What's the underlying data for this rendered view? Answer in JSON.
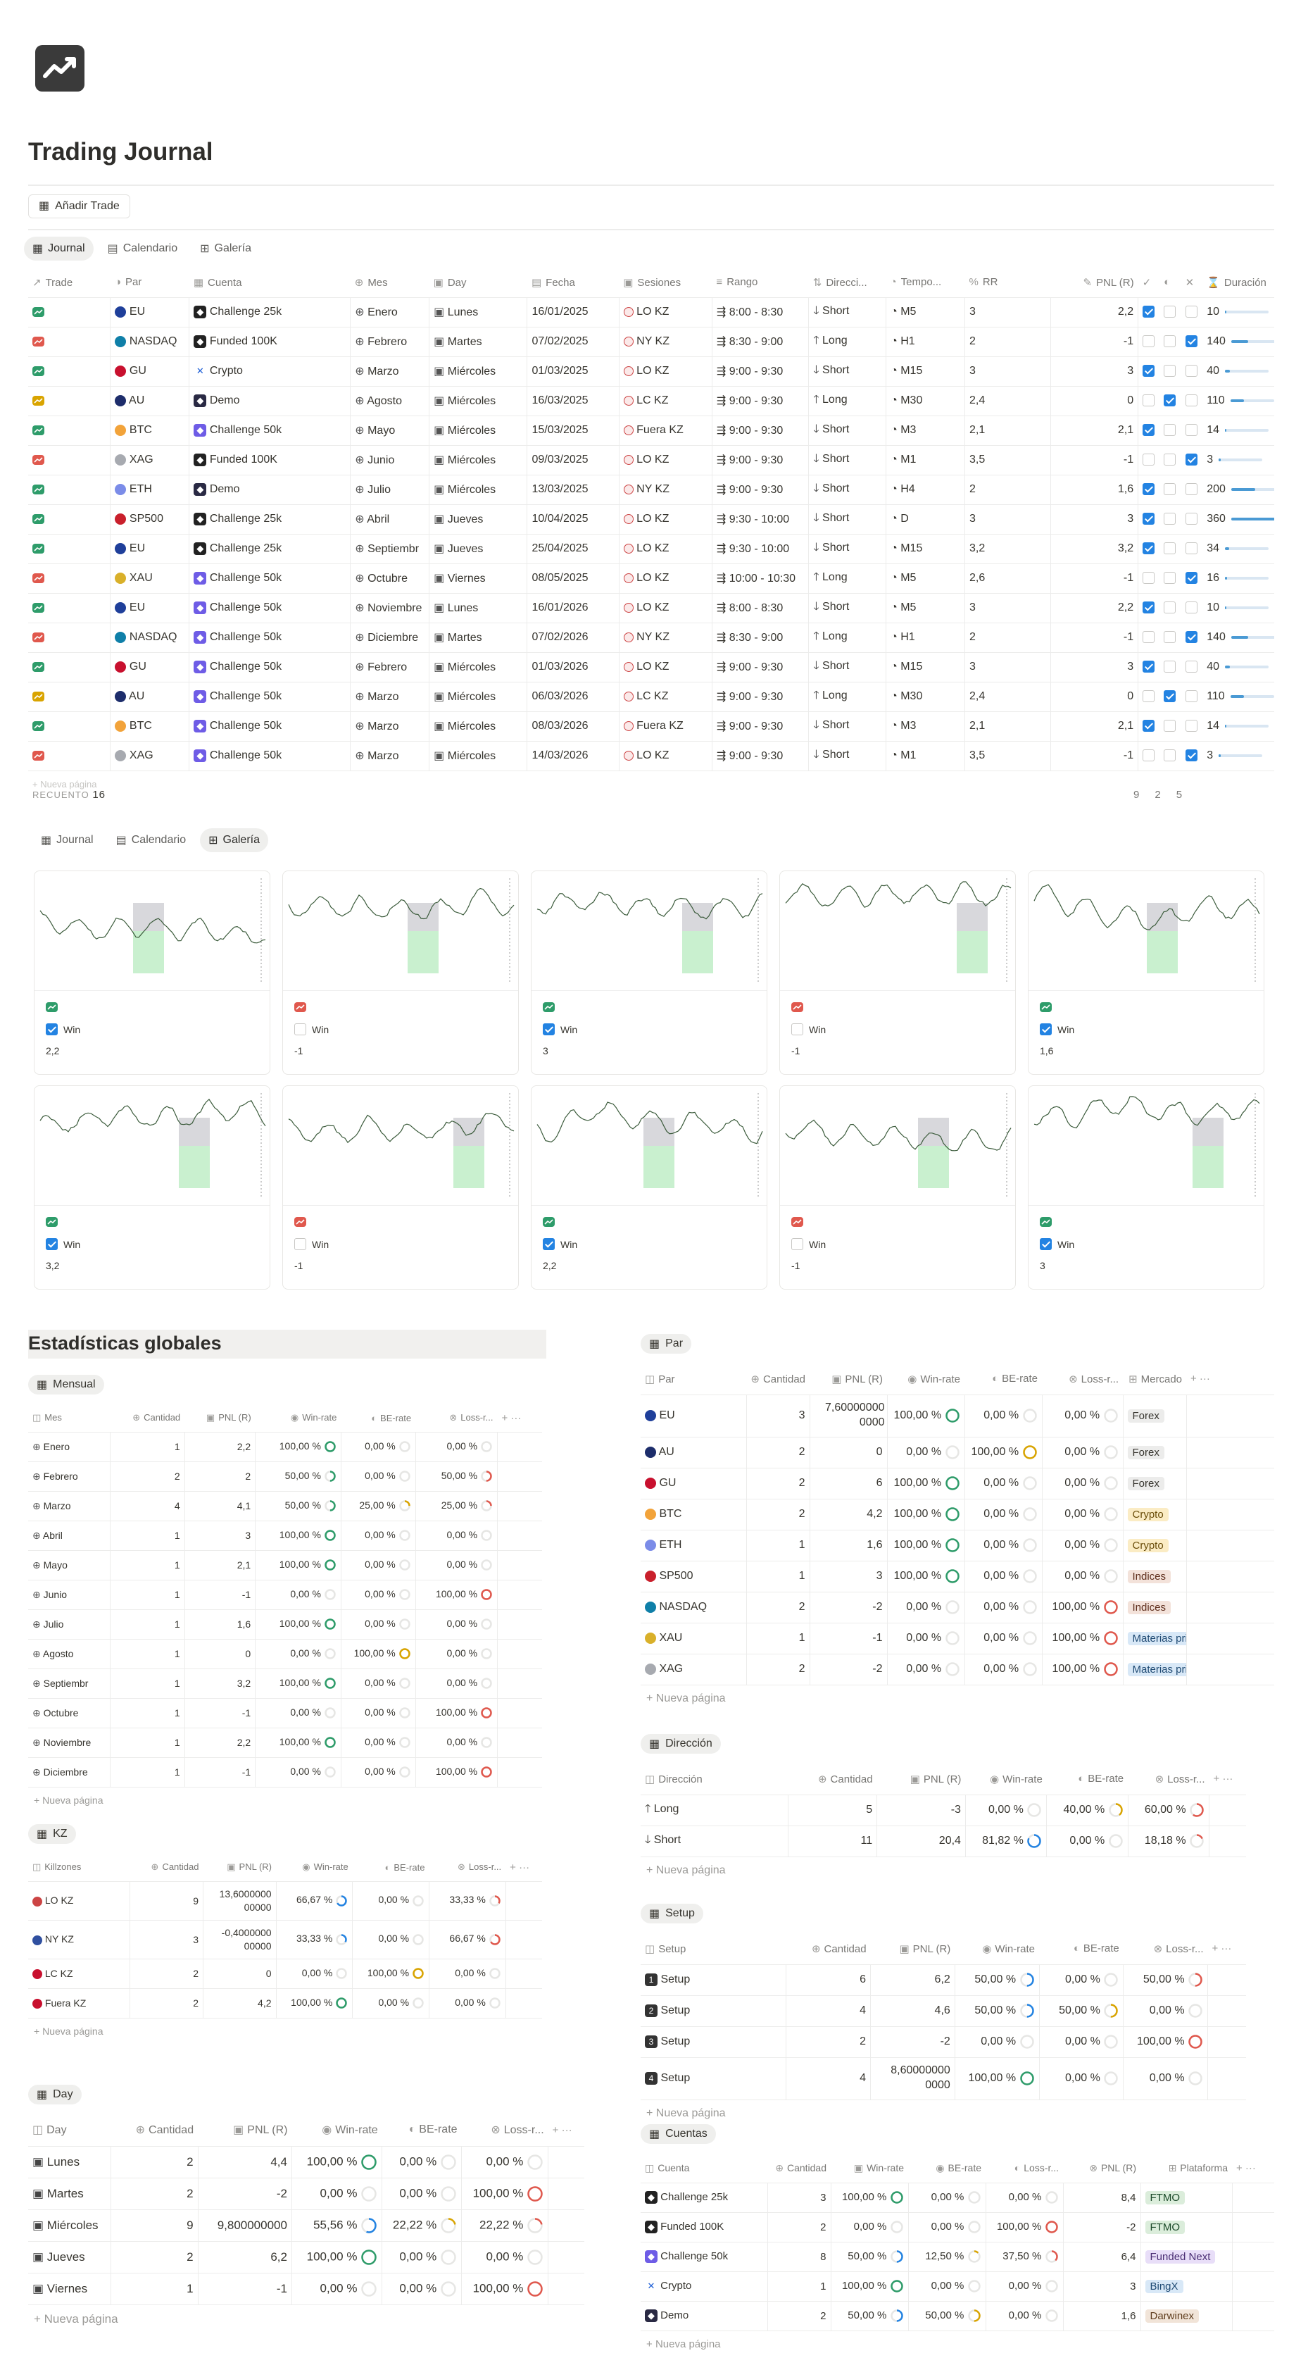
{
  "app": {
    "title": "Trading Journal",
    "add_trade": "Añadir Trade"
  },
  "views": [
    "Journal",
    "Calendario",
    "Galería"
  ],
  "journal": {
    "columns": [
      "Trade",
      "Par",
      "Cuenta",
      "Mes",
      "Day",
      "Fecha",
      "Sesiones",
      "Rango",
      "Direcci...",
      "Tempo...",
      "RR",
      "PNL (R)",
      "Duración"
    ],
    "rows": [
      {
        "pair": "EU",
        "acc": "Challenge 25k",
        "mes": "Enero",
        "day": "Lunes",
        "fecha": "16/01/2025",
        "ses": "LO KZ",
        "rango": "8:00 - 8:30",
        "dir": "Short",
        "tf": "M5",
        "rr": "3",
        "pnl": "2,2",
        "w": true,
        "b": false,
        "l": false,
        "dur": "10",
        "win": true
      },
      {
        "pair": "NASDAQ",
        "acc": "Funded 100K",
        "mes": "Febrero",
        "day": "Martes",
        "fecha": "07/02/2025",
        "ses": "NY KZ",
        "rango": "8:30 - 9:00",
        "dir": "Long",
        "tf": "H1",
        "rr": "2",
        "pnl": "-1",
        "w": false,
        "b": false,
        "l": true,
        "dur": "140",
        "win": false
      },
      {
        "pair": "GU",
        "acc": "Crypto",
        "mes": "Marzo",
        "day": "Miércoles",
        "fecha": "01/03/2025",
        "ses": "LO KZ",
        "rango": "9:00 - 9:30",
        "dir": "Short",
        "tf": "M15",
        "rr": "3",
        "pnl": "3",
        "w": true,
        "b": false,
        "l": false,
        "dur": "40",
        "win": true
      },
      {
        "pair": "AU",
        "acc": "Demo",
        "mes": "Agosto",
        "day": "Miércoles",
        "fecha": "16/03/2025",
        "ses": "LC KZ",
        "rango": "9:00 - 9:30",
        "dir": "Long",
        "tf": "M30",
        "rr": "2,4",
        "pnl": "0",
        "w": false,
        "b": true,
        "l": false,
        "dur": "110",
        "win": null
      },
      {
        "pair": "BTC",
        "acc": "Challenge 50k",
        "mes": "Mayo",
        "day": "Miércoles",
        "fecha": "15/03/2025",
        "ses": "Fuera KZ",
        "rango": "9:00 - 9:30",
        "dir": "Short",
        "tf": "M3",
        "rr": "2,1",
        "pnl": "2,1",
        "w": true,
        "b": false,
        "l": false,
        "dur": "14",
        "win": true
      },
      {
        "pair": "XAG",
        "acc": "Funded 100K",
        "mes": "Junio",
        "day": "Miércoles",
        "fecha": "09/03/2025",
        "ses": "LO KZ",
        "rango": "9:00 - 9:30",
        "dir": "Short",
        "tf": "M1",
        "rr": "3,5",
        "pnl": "-1",
        "w": false,
        "b": false,
        "l": true,
        "dur": "3",
        "win": false
      },
      {
        "pair": "ETH",
        "acc": "Demo",
        "mes": "Julio",
        "day": "Miércoles",
        "fecha": "13/03/2025",
        "ses": "NY KZ",
        "rango": "9:00 - 9:30",
        "dir": "Short",
        "tf": "H4",
        "rr": "2",
        "pnl": "1,6",
        "w": true,
        "b": false,
        "l": false,
        "dur": "200",
        "win": true
      },
      {
        "pair": "SP500",
        "acc": "Challenge 25k",
        "mes": "Abril",
        "day": "Jueves",
        "fecha": "10/04/2025",
        "ses": "LO KZ",
        "rango": "9:30 - 10:00",
        "dir": "Short",
        "tf": "D",
        "rr": "3",
        "pnl": "3",
        "w": true,
        "b": false,
        "l": false,
        "dur": "360",
        "win": true
      },
      {
        "pair": "EU",
        "acc": "Challenge 25k",
        "mes": "Septiembr",
        "day": "Jueves",
        "fecha": "25/04/2025",
        "ses": "LO KZ",
        "rango": "9:30 - 10:00",
        "dir": "Short",
        "tf": "M15",
        "rr": "3,2",
        "pnl": "3,2",
        "w": true,
        "b": false,
        "l": false,
        "dur": "34",
        "win": true
      },
      {
        "pair": "XAU",
        "acc": "Challenge 50k",
        "mes": "Octubre",
        "day": "Viernes",
        "fecha": "08/05/2025",
        "ses": "LO KZ",
        "rango": "10:00 - 10:30",
        "dir": "Long",
        "tf": "M5",
        "rr": "2,6",
        "pnl": "-1",
        "w": false,
        "b": false,
        "l": true,
        "dur": "16",
        "win": false
      },
      {
        "pair": "EU",
        "acc": "Challenge 50k",
        "mes": "Noviembre",
        "day": "Lunes",
        "fecha": "16/01/2026",
        "ses": "LO KZ",
        "rango": "8:00 - 8:30",
        "dir": "Short",
        "tf": "M5",
        "rr": "3",
        "pnl": "2,2",
        "w": true,
        "b": false,
        "l": false,
        "dur": "10",
        "win": true
      },
      {
        "pair": "NASDAQ",
        "acc": "Challenge 50k",
        "mes": "Diciembre",
        "day": "Martes",
        "fecha": "07/02/2026",
        "ses": "NY KZ",
        "rango": "8:30 - 9:00",
        "dir": "Long",
        "tf": "H1",
        "rr": "2",
        "pnl": "-1",
        "w": false,
        "b": false,
        "l": true,
        "dur": "140",
        "win": false
      },
      {
        "pair": "GU",
        "acc": "Challenge 50k",
        "mes": "Febrero",
        "day": "Miércoles",
        "fecha": "01/03/2026",
        "ses": "LO KZ",
        "rango": "9:00 - 9:30",
        "dir": "Short",
        "tf": "M15",
        "rr": "3",
        "pnl": "3",
        "w": true,
        "b": false,
        "l": false,
        "dur": "40",
        "win": true
      },
      {
        "pair": "AU",
        "acc": "Challenge 50k",
        "mes": "Marzo",
        "day": "Miércoles",
        "fecha": "06/03/2026",
        "ses": "LC KZ",
        "rango": "9:00 - 9:30",
        "dir": "Long",
        "tf": "M30",
        "rr": "2,4",
        "pnl": "0",
        "w": false,
        "b": true,
        "l": false,
        "dur": "110",
        "win": null
      },
      {
        "pair": "BTC",
        "acc": "Challenge 50k",
        "mes": "Marzo",
        "day": "Miércoles",
        "fecha": "08/03/2026",
        "ses": "Fuera KZ",
        "rango": "9:00 - 9:30",
        "dir": "Short",
        "tf": "M3",
        "rr": "2,1",
        "pnl": "2,1",
        "w": true,
        "b": false,
        "l": false,
        "dur": "14",
        "win": true
      },
      {
        "pair": "XAG",
        "acc": "Challenge 50k",
        "mes": "Marzo",
        "day": "Miércoles",
        "fecha": "14/03/2026",
        "ses": "LO KZ",
        "rango": "9:00 - 9:30",
        "dir": "Short",
        "tf": "M1",
        "rr": "3,5",
        "pnl": "-1",
        "w": false,
        "b": false,
        "l": true,
        "dur": "3",
        "win": false
      }
    ],
    "count_label": "RECUENTO",
    "count": "16",
    "footer_nums": [
      "9",
      "2",
      "5"
    ]
  },
  "gallery": {
    "cards": [
      {
        "win": true,
        "label": "Win",
        "pnl": "2,2"
      },
      {
        "win": false,
        "label": "Win",
        "pnl": "-1"
      },
      {
        "win": true,
        "label": "Win",
        "pnl": "3"
      },
      {
        "win": false,
        "label": "Win",
        "pnl": "-1"
      },
      {
        "win": true,
        "label": "Win",
        "pnl": "1,6"
      },
      {
        "win": true,
        "label": "Win",
        "pnl": "3,2"
      },
      {
        "win": false,
        "label": "Win",
        "pnl": "-1"
      },
      {
        "win": true,
        "label": "Win",
        "pnl": "2,2"
      },
      {
        "win": false,
        "label": "Win",
        "pnl": "-1"
      },
      {
        "win": true,
        "label": "Win",
        "pnl": "3"
      }
    ]
  },
  "stats": {
    "title": "Estadísticas globales",
    "new_page": "Nueva página",
    "mensual": {
      "label": "Mensual",
      "cols": [
        "Mes",
        "Cantidad",
        "PNL (R)",
        "Win-rate",
        "BE-rate",
        "Loss-r..."
      ],
      "rows": [
        [
          "Enero",
          "1",
          "2,2",
          "100,00 %",
          "0,00 %",
          "0,00 %"
        ],
        [
          "Febrero",
          "2",
          "2",
          "50,00 %",
          "0,00 %",
          "50,00 %"
        ],
        [
          "Marzo",
          "4",
          "4,1",
          "50,00 %",
          "25,00 %",
          "25,00 %"
        ],
        [
          "Abril",
          "1",
          "3",
          "100,00 %",
          "0,00 %",
          "0,00 %"
        ],
        [
          "Mayo",
          "1",
          "2,1",
          "100,00 %",
          "0,00 %",
          "0,00 %"
        ],
        [
          "Junio",
          "1",
          "-1",
          "0,00 %",
          "0,00 %",
          "100,00 %"
        ],
        [
          "Julio",
          "1",
          "1,6",
          "100,00 %",
          "0,00 %",
          "0,00 %"
        ],
        [
          "Agosto",
          "1",
          "0",
          "0,00 %",
          "100,00 %",
          "0,00 %"
        ],
        [
          "Septiembr",
          "1",
          "3,2",
          "100,00 %",
          "0,00 %",
          "0,00 %"
        ],
        [
          "Octubre",
          "1",
          "-1",
          "0,00 %",
          "0,00 %",
          "100,00 %"
        ],
        [
          "Noviembre",
          "1",
          "2,2",
          "100,00 %",
          "0,00 %",
          "0,00 %"
        ],
        [
          "Diciembre",
          "1",
          "-1",
          "0,00 %",
          "0,00 %",
          "100,00 %"
        ]
      ]
    },
    "kz": {
      "label": "KZ",
      "cols": [
        "Killzones",
        "Cantidad",
        "PNL (R)",
        "Win-rate",
        "BE-rate",
        "Loss-r..."
      ],
      "rows": [
        [
          "LO KZ",
          "9",
          "13,6000000 00000",
          "66,67 %",
          "0,00 %",
          "33,33 %"
        ],
        [
          "NY KZ",
          "3",
          "-0,4000000 00000",
          "33,33 %",
          "0,00 %",
          "66,67 %"
        ],
        [
          "LC KZ",
          "2",
          "0",
          "0,00 %",
          "100,00 %",
          "0,00 %"
        ],
        [
          "Fuera KZ",
          "2",
          "4,2",
          "100,00 %",
          "0,00 %",
          "0,00 %"
        ]
      ]
    },
    "day": {
      "label": "Day",
      "cols": [
        "Day",
        "Cantidad",
        "PNL (R)",
        "Win-rate",
        "BE-rate",
        "Loss-r..."
      ],
      "rows": [
        [
          "Lunes",
          "2",
          "4,4",
          "100,00 %",
          "0,00 %",
          "0,00 %"
        ],
        [
          "Martes",
          "2",
          "-2",
          "0,00 %",
          "0,00 %",
          "100,00 %"
        ],
        [
          "Miércoles",
          "9",
          "9,800000000",
          "55,56 %",
          "22,22 %",
          "22,22 %"
        ],
        [
          "Jueves",
          "2",
          "6,2",
          "100,00 %",
          "0,00 %",
          "0,00 %"
        ],
        [
          "Viernes",
          "1",
          "-1",
          "0,00 %",
          "0,00 %",
          "100,00 %"
        ]
      ]
    },
    "par": {
      "label": "Par",
      "cols": [
        "Par",
        "Cantidad",
        "PNL (R)",
        "Win-rate",
        "BE-rate",
        "Loss-r...",
        "Mercado"
      ],
      "rows": [
        [
          "EU",
          "3",
          "7,60000000 0000",
          "100,00 %",
          "0,00 %",
          "0,00 %",
          "Forex"
        ],
        [
          "AU",
          "2",
          "0",
          "0,00 %",
          "100,00 %",
          "0,00 %",
          "Forex"
        ],
        [
          "GU",
          "2",
          "6",
          "100,00 %",
          "0,00 %",
          "0,00 %",
          "Forex"
        ],
        [
          "BTC",
          "2",
          "4,2",
          "100,00 %",
          "0,00 %",
          "0,00 %",
          "Crypto"
        ],
        [
          "ETH",
          "1",
          "1,6",
          "100,00 %",
          "0,00 %",
          "0,00 %",
          "Crypto"
        ],
        [
          "SP500",
          "1",
          "3",
          "100,00 %",
          "0,00 %",
          "0,00 %",
          "Indices"
        ],
        [
          "NASDAQ",
          "2",
          "-2",
          "0,00 %",
          "0,00 %",
          "100,00 %",
          "Indices"
        ],
        [
          "XAU",
          "1",
          "-1",
          "0,00 %",
          "0,00 %",
          "100,00 %",
          "Materias primas"
        ],
        [
          "XAG",
          "2",
          "-2",
          "0,00 %",
          "0,00 %",
          "100,00 %",
          "Materias primas"
        ]
      ]
    },
    "dir": {
      "label": "Dirección",
      "cols": [
        "Dirección",
        "Cantidad",
        "PNL (R)",
        "Win-rate",
        "BE-rate",
        "Loss-r..."
      ],
      "rows": [
        [
          "Long",
          "5",
          "-3",
          "0,00 %",
          "40,00 %",
          "60,00 %"
        ],
        [
          "Short",
          "11",
          "20,4",
          "81,82 %",
          "0,00 %",
          "18,18 %"
        ]
      ]
    },
    "setup": {
      "label": "Setup",
      "cols": [
        "Setup",
        "Cantidad",
        "PNL (R)",
        "Win-rate",
        "BE-rate",
        "Loss-r..."
      ],
      "rows": [
        [
          "Setup",
          "6",
          "6,2",
          "50,00 %",
          "0,00 %",
          "50,00 %"
        ],
        [
          "Setup",
          "4",
          "4,6",
          "50,00 %",
          "50,00 %",
          "0,00 %"
        ],
        [
          "Setup",
          "2",
          "-2",
          "0,00 %",
          "0,00 %",
          "100,00 %"
        ],
        [
          "Setup",
          "4",
          "8,60000000 0000",
          "100,00 %",
          "0,00 %",
          "0,00 %"
        ]
      ]
    },
    "cuentas": {
      "label": "Cuentas",
      "cols": [
        "Cuenta",
        "Cantidad",
        "Win-rate",
        "BE-rate",
        "Loss-r...",
        "PNL (R)",
        "Plataforma"
      ],
      "rows": [
        [
          "Challenge 25k",
          "3",
          "100,00 %",
          "0,00 %",
          "0,00 %",
          "8,4",
          "FTMO"
        ],
        [
          "Funded 100K",
          "2",
          "0,00 %",
          "0,00 %",
          "100,00 %",
          "-2",
          "FTMO"
        ],
        [
          "Challenge 50k",
          "8",
          "50,00 %",
          "12,50 %",
          "37,50 %",
          "6,4",
          "Funded Next"
        ],
        [
          "Crypto",
          "1",
          "100,00 %",
          "0,00 %",
          "0,00 %",
          "3",
          "BingX"
        ],
        [
          "Demo",
          "2",
          "50,00 %",
          "50,00 %",
          "0,00 %",
          "1,6",
          "Darwinex"
        ]
      ]
    }
  },
  "colors": {
    "win": "#2e9c6a",
    "be": "#d9a400",
    "loss": "#e0584d",
    "blue": "#2383e2"
  }
}
